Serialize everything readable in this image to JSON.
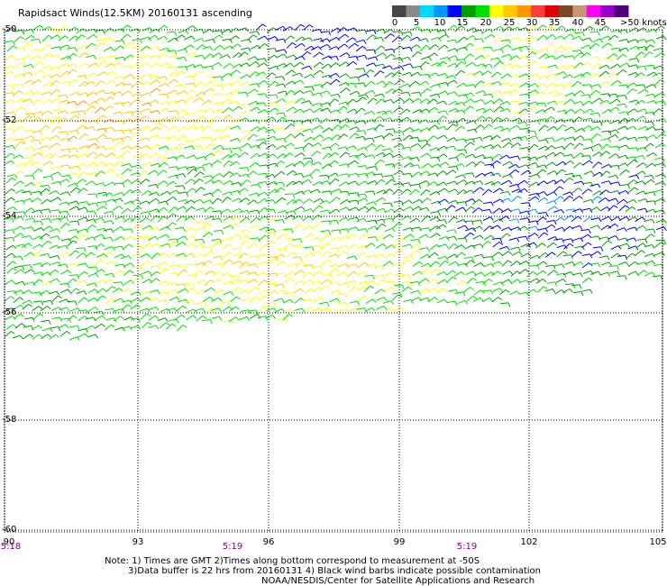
{
  "title": "Rapidsact Winds(12.5KM) 20160131 ascending",
  "legend": {
    "colors": [
      "#454545",
      "#8a8a8a",
      "#00d8ff",
      "#0096ff",
      "#0000ff",
      "#00a000",
      "#00e000",
      "#ffff00",
      "#ffc800",
      "#ff9600",
      "#ff3c3c",
      "#e00000",
      "#784828",
      "#c89678",
      "#ff00ff",
      "#9600c8",
      "#500078"
    ],
    "labels": [
      "0",
      "5",
      "10",
      "15",
      "20",
      "25",
      "30",
      "35",
      "40",
      "45"
    ],
    "last_label": ">50",
    "unit": "knots"
  },
  "axes": {
    "lat_labels": [
      "-50",
      "-52",
      "-54",
      "-56",
      "-58",
      "-60"
    ],
    "lon_labels": [
      "90",
      "93",
      "96",
      "99",
      "102",
      "105"
    ],
    "time_labels": [
      "5:18",
      "5:19",
      "5:19"
    ]
  },
  "notes": [
    "Note: 1) Times are GMT 2)Times along bottom correspond to measurement at -50S",
    "3)Data buffer is 22 hrs from 20160131 4) Black wind barbs indicate possible contamination",
    "NOAA/NESDIS/Center for Satellite Applications and Research"
  ]
}
